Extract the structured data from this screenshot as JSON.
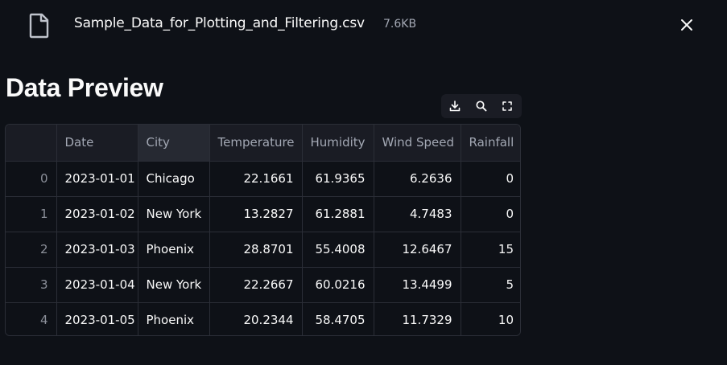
{
  "file": {
    "name": "Sample_Data_for_Plotting_and_Filtering.csv",
    "size": "7.6KB",
    "icon": "file-icon",
    "close_icon": "close-icon"
  },
  "page": {
    "title": "Data Preview"
  },
  "toolbar": {
    "icons": [
      "download-icon",
      "search-icon",
      "fullscreen-icon"
    ]
  },
  "table": {
    "columns": [
      "Date",
      "City",
      "Temperature",
      "Humidity",
      "Wind Speed",
      "Rainfall"
    ],
    "selected_column": "City",
    "rows": [
      {
        "index": "0",
        "date": "2023-01-01",
        "city": "Chicago",
        "temperature": "22.1661",
        "humidity": "61.9365",
        "wind_speed": "6.2636",
        "rainfall": "0"
      },
      {
        "index": "1",
        "date": "2023-01-02",
        "city": "New York",
        "temperature": "13.2827",
        "humidity": "61.2881",
        "wind_speed": "4.7483",
        "rainfall": "0"
      },
      {
        "index": "2",
        "date": "2023-01-03",
        "city": "Phoenix",
        "temperature": "28.8701",
        "humidity": "55.4008",
        "wind_speed": "12.6467",
        "rainfall": "15"
      },
      {
        "index": "3",
        "date": "2023-01-04",
        "city": "New York",
        "temperature": "22.2667",
        "humidity": "60.0216",
        "wind_speed": "13.4499",
        "rainfall": "5"
      },
      {
        "index": "4",
        "date": "2023-01-05",
        "city": "Phoenix",
        "temperature": "20.2344",
        "humidity": "58.4705",
        "wind_speed": "11.7329",
        "rainfall": "10"
      }
    ]
  },
  "colors": {
    "background": "#0e1117",
    "header_bg": "#1a1c24",
    "selected_header_bg": "#262932",
    "grid_line": "#2b2e37",
    "text": "#fafafa",
    "muted_text": "#a3a8b4"
  }
}
